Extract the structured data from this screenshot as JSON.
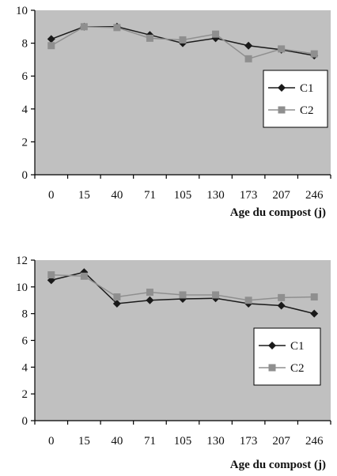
{
  "chart_data": [
    {
      "type": "line",
      "title": "",
      "xlabel": "Age du compost (j)",
      "ylabel": "",
      "categories": [
        "0",
        "15",
        "40",
        "71",
        "105",
        "130",
        "173",
        "207",
        "246"
      ],
      "ylim": [
        0,
        10
      ],
      "yticks": [
        0,
        2,
        4,
        6,
        8,
        10
      ],
      "grid": false,
      "legend_position": "right",
      "series": [
        {
          "name": "C1",
          "marker": "diamond",
          "color": "#1a1a1a",
          "values": [
            8.25,
            9.0,
            9.0,
            8.5,
            8.0,
            8.3,
            7.85,
            7.6,
            7.25
          ]
        },
        {
          "name": "C2",
          "marker": "square",
          "color": "#8f8f8f",
          "values": [
            7.85,
            9.0,
            8.95,
            8.3,
            8.2,
            8.55,
            7.05,
            7.65,
            7.35
          ]
        }
      ]
    },
    {
      "type": "line",
      "title": "",
      "xlabel": "Age du compost (j)",
      "ylabel": "",
      "categories": [
        "0",
        "15",
        "40",
        "71",
        "105",
        "130",
        "173",
        "207",
        "246"
      ],
      "ylim": [
        0,
        12
      ],
      "yticks": [
        0,
        2,
        4,
        6,
        8,
        10,
        12
      ],
      "grid": false,
      "legend_position": "bottom-right",
      "series": [
        {
          "name": "C1",
          "marker": "diamond",
          "color": "#1a1a1a",
          "values": [
            10.5,
            11.1,
            8.75,
            9.0,
            9.1,
            9.15,
            8.75,
            8.6,
            8.0
          ]
        },
        {
          "name": "C2",
          "marker": "square",
          "color": "#8f8f8f",
          "values": [
            10.9,
            10.8,
            9.25,
            9.6,
            9.4,
            9.4,
            9.0,
            9.2,
            9.25
          ]
        }
      ]
    }
  ],
  "style": {
    "plot_background": "#c0c0c0",
    "axis_color": "#000000",
    "legend_background": "#ffffff"
  }
}
